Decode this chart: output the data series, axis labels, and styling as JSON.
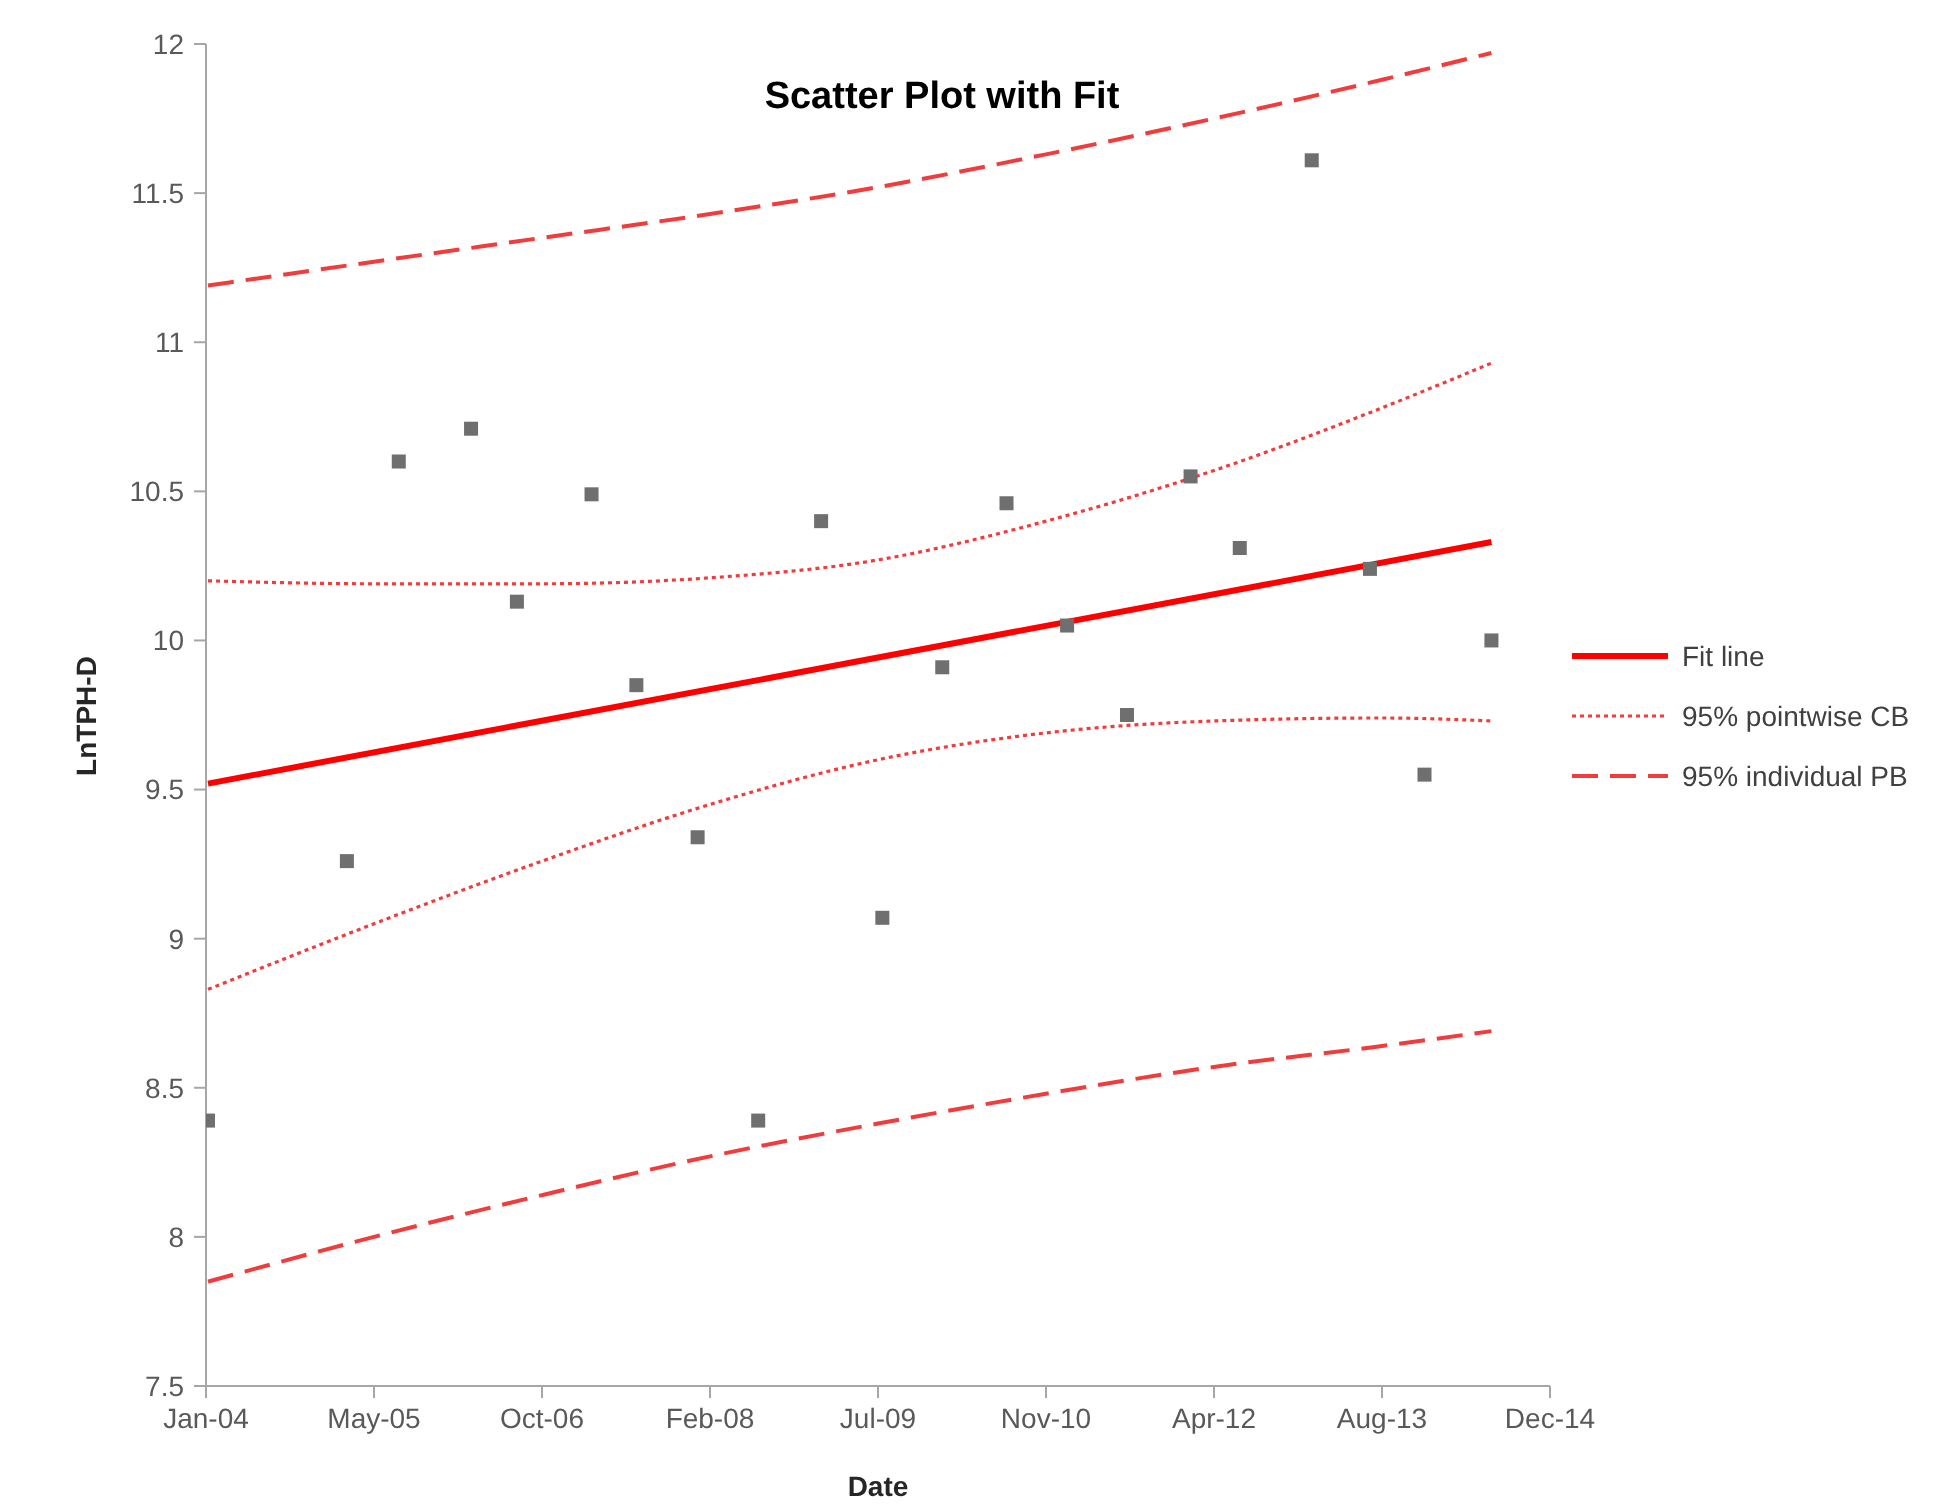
{
  "chart_data": {
    "type": "scatter",
    "title": "Scatter Plot with Fit",
    "xlabel": "Date",
    "ylabel": "LnTPH-D",
    "x": [
      "2004-01-08",
      "2005-02-26",
      "2005-07-31",
      "2006-03-04",
      "2006-07-19",
      "2007-02-27",
      "2007-07-11",
      "2008-01-10",
      "2008-07-09",
      "2009-01-13",
      "2009-07-15",
      "2010-01-10",
      "2010-07-21",
      "2011-01-18",
      "2011-07-16",
      "2012-01-22",
      "2012-06-17",
      "2013-01-18",
      "2013-07-11",
      "2013-12-21",
      "2014-07-09"
    ],
    "xlim": [
      "2004-01-02",
      "2014-12-31"
    ],
    "xticks": [
      {
        "value": "2004-01-02",
        "label": "Jan-04"
      },
      {
        "value": "2005-05-18",
        "label": "May-05"
      },
      {
        "value": "2006-10-02",
        "label": "Oct-06"
      },
      {
        "value": "2008-02-16",
        "label": "Feb-08"
      },
      {
        "value": "2009-07-02",
        "label": "Jul-09"
      },
      {
        "value": "2010-11-16",
        "label": "Nov-10"
      },
      {
        "value": "2012-04-01",
        "label": "Apr-12"
      },
      {
        "value": "2013-08-16",
        "label": "Aug-13"
      },
      {
        "value": "2014-12-31",
        "label": "Dec-14"
      }
    ],
    "ylim": [
      7.5,
      12
    ],
    "yticks": [
      7.5,
      8,
      8.5,
      9,
      9.5,
      10,
      10.5,
      11,
      11.5,
      12
    ],
    "legend": "right",
    "marker": "square",
    "series": [
      {
        "color": "#6f6f6f",
        "values": [
          8.39,
          9.26,
          10.6,
          10.71,
          10.13,
          10.49,
          9.85,
          9.34,
          8.39,
          10.4,
          9.07,
          9.91,
          10.46,
          10.05,
          9.75,
          10.55,
          10.31,
          11.61,
          10.24,
          9.55,
          10.0
        ]
      },
      {
        "type": "line",
        "name": "Fit line",
        "color": "#ff0000",
        "line_style": "solid",
        "marker": "none",
        "x": [
          "2004-01-08",
          "2014-07-09"
        ],
        "values": [
          9.52,
          10.33
        ]
      },
      {
        "type": "line",
        "name": "95% pointwise CB",
        "color": "#f03c3c",
        "line_style": "dotted",
        "marker": "none",
        "x": [
          "2004-01-08",
          "2005-05-18",
          "2006-10-02",
          "2008-02-16",
          "2009-07-02",
          "2010-11-16",
          "2012-04-01",
          "2013-08-16",
          "2014-07-09"
        ],
        "values": [
          10.2,
          10.19,
          10.19,
          10.21,
          10.27,
          10.4,
          10.57,
          10.78,
          10.93
        ]
      },
      {
        "type": "line",
        "color": "#f03c3c",
        "line_style": "dotted",
        "marker": "none",
        "x": [
          "2004-01-08",
          "2005-05-18",
          "2006-10-02",
          "2008-02-16",
          "2009-07-02",
          "2010-11-16",
          "2012-04-01",
          "2013-08-16",
          "2014-07-09"
        ],
        "values": [
          8.83,
          9.05,
          9.26,
          9.45,
          9.6,
          9.69,
          9.73,
          9.74,
          9.73
        ]
      },
      {
        "type": "line",
        "name": "95% individual PB",
        "color": "#f03c3c",
        "line_style": "dashed",
        "marker": "none",
        "x": [
          "2004-01-08",
          "2005-05-18",
          "2006-10-02",
          "2008-02-16",
          "2009-07-02",
          "2010-11-16",
          "2012-04-01",
          "2013-08-16",
          "2014-07-09"
        ],
        "values": [
          11.19,
          11.27,
          11.35,
          11.43,
          11.52,
          11.63,
          11.75,
          11.88,
          11.97
        ]
      },
      {
        "type": "line",
        "color": "#f03c3c",
        "line_style": "dashed",
        "marker": "none",
        "x": [
          "2004-01-08",
          "2005-05-18",
          "2006-10-02",
          "2008-02-16",
          "2009-07-02",
          "2010-11-16",
          "2012-04-01",
          "2013-08-16",
          "2014-07-09"
        ],
        "values": [
          7.85,
          8.0,
          8.14,
          8.27,
          8.38,
          8.48,
          8.57,
          8.64,
          8.69
        ]
      }
    ]
  }
}
